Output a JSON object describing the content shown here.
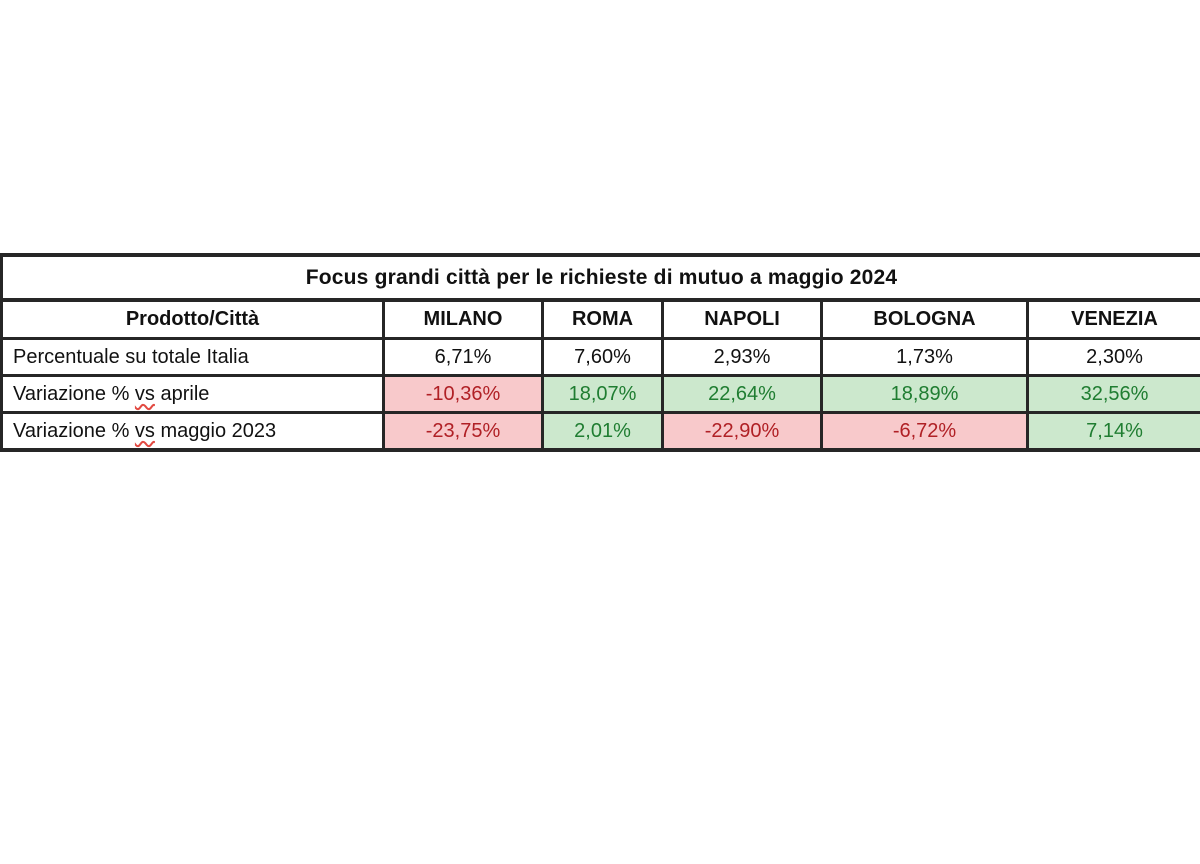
{
  "chart_data": {
    "type": "table",
    "title": "Focus grandi città per le richieste di mutuo a maggio 2024",
    "columns": [
      "Prodotto/Città",
      "MILANO",
      "ROMA",
      "NAPOLI",
      "BOLOGNA",
      "VENEZIA"
    ],
    "rows": [
      [
        "Percentuale su totale Italia",
        "6,71%",
        "7,60%",
        "2,93%",
        "1,73%",
        "2,30%"
      ],
      [
        "Variazione % vs aprile",
        "-10,36%",
        "18,07%",
        "22,64%",
        "18,89%",
        "32,56%"
      ],
      [
        "Variazione % vs maggio 2023",
        "-23,75%",
        "2,01%",
        "-22,90%",
        "-6,72%",
        "7,14%"
      ]
    ],
    "conditional_formatting": {
      "negative_cells": {
        "background": "#f8c9cb",
        "text_color": "#b02025"
      },
      "positive_cells": {
        "background": "#cce8cd",
        "text_color": "#1f7d31"
      },
      "neutral_cells": {
        "background": "#ffffff",
        "text_color": "#111111"
      }
    },
    "layout_hints": {
      "border_color": "#262626",
      "grid": "on",
      "header_bold": true,
      "values_align": "center",
      "labels_align": "left"
    }
  },
  "spellcheck": {
    "variazione_aprile": {
      "prefix": "Variazione % ",
      "word": "vs",
      "suffix": " aprile"
    },
    "variazione_maggio": {
      "prefix": "Variazione % ",
      "word": "vs",
      "suffix": " maggio 2023"
    }
  }
}
